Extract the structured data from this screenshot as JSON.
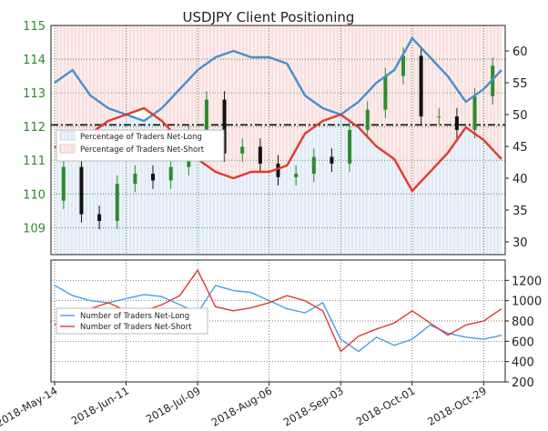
{
  "chart_data": [
    {
      "type": "line",
      "title": "USDJPY Client Positioning",
      "x": [
        "2018-May-14",
        "2018-May-21",
        "2018-May-28",
        "2018-Jun-04",
        "2018-Jun-11",
        "2018-Jun-18",
        "2018-Jun-25",
        "2018-Jul-02",
        "2018-Jul-09",
        "2018-Jul-16",
        "2018-Jul-23",
        "2018-Jul-30",
        "2018-Aug-06",
        "2018-Aug-13",
        "2018-Aug-20",
        "2018-Aug-27",
        "2018-Sep-03",
        "2018-Sep-10",
        "2018-Sep-17",
        "2018-Sep-24",
        "2018-Oct-01",
        "2018-Oct-08",
        "2018-Oct-15",
        "2018-Oct-22",
        "2018-Oct-29",
        "2018-Nov-05"
      ],
      "x_tick_labels": [
        "2018-May-14",
        "2018-Jun-11",
        "2018-Jul-09",
        "2018-Aug-06",
        "2018-Sep-03",
        "2018-Oct-01",
        "2018-Oct-29"
      ],
      "price": {
        "axis": "left",
        "ylim": [
          108.2,
          115
        ],
        "ticks": [
          109,
          110,
          111,
          112,
          113,
          114,
          115
        ],
        "tick_color": "#2e8b2e",
        "close": [
          109.8,
          110.8,
          109.4,
          109.2,
          110.3,
          110.6,
          110.4,
          110.8,
          111.8,
          112.8,
          111.2,
          111.4,
          110.9,
          110.5,
          110.6,
          111.1,
          110.9,
          111.9,
          112.5,
          113.5,
          114.1,
          112.3,
          112.3,
          111.9,
          112.9,
          113.8
        ],
        "reference_level": 112.05
      },
      "sentiment": {
        "axis": "right",
        "ylim": [
          28,
          64
        ],
        "ticks": [
          30,
          35,
          40,
          45,
          50,
          55,
          60
        ],
        "series": [
          {
            "name": "Percentage of Traders Net-Long",
            "color": "#4a8fce",
            "values": [
              55,
              57,
              53,
              51,
              50,
              49,
              51,
              54,
              57,
              59,
              60,
              59,
              59,
              58,
              53,
              51,
              50,
              52,
              55,
              57,
              62,
              59,
              56,
              52,
              54,
              57
            ]
          },
          {
            "name": "Percentage of Traders Net-Short",
            "color": "#e23b2e",
            "values": [
              45,
              43,
              47,
              49,
              50,
              51,
              49,
              46,
              43,
              41,
              40,
              41,
              41,
              42,
              47,
              49,
              50,
              48,
              45,
              43,
              38,
              41,
              44,
              48,
              46,
              43
            ]
          }
        ]
      },
      "legend": {
        "position": "left"
      }
    },
    {
      "type": "line",
      "y_axis": "right",
      "ylim": [
        200,
        1400
      ],
      "ticks": [
        200,
        400,
        600,
        800,
        1000,
        1200
      ],
      "series": [
        {
          "name": "Number of Traders Net-Long",
          "color": "#4a9fe8",
          "values": [
            1150,
            1050,
            1000,
            980,
            1020,
            1060,
            1040,
            960,
            880,
            1150,
            1100,
            1080,
            1000,
            920,
            880,
            980,
            620,
            500,
            640,
            560,
            620,
            760,
            680,
            640,
            620,
            660
          ]
        },
        {
          "name": "Number of Traders Net-Short",
          "color": "#e03b30",
          "values": [
            760,
            880,
            920,
            980,
            900,
            900,
            960,
            1050,
            1300,
            940,
            900,
            930,
            980,
            1050,
            1000,
            900,
            500,
            650,
            720,
            780,
            900,
            780,
            660,
            760,
            800,
            920
          ]
        }
      ],
      "legend": {
        "position": "left"
      }
    }
  ]
}
